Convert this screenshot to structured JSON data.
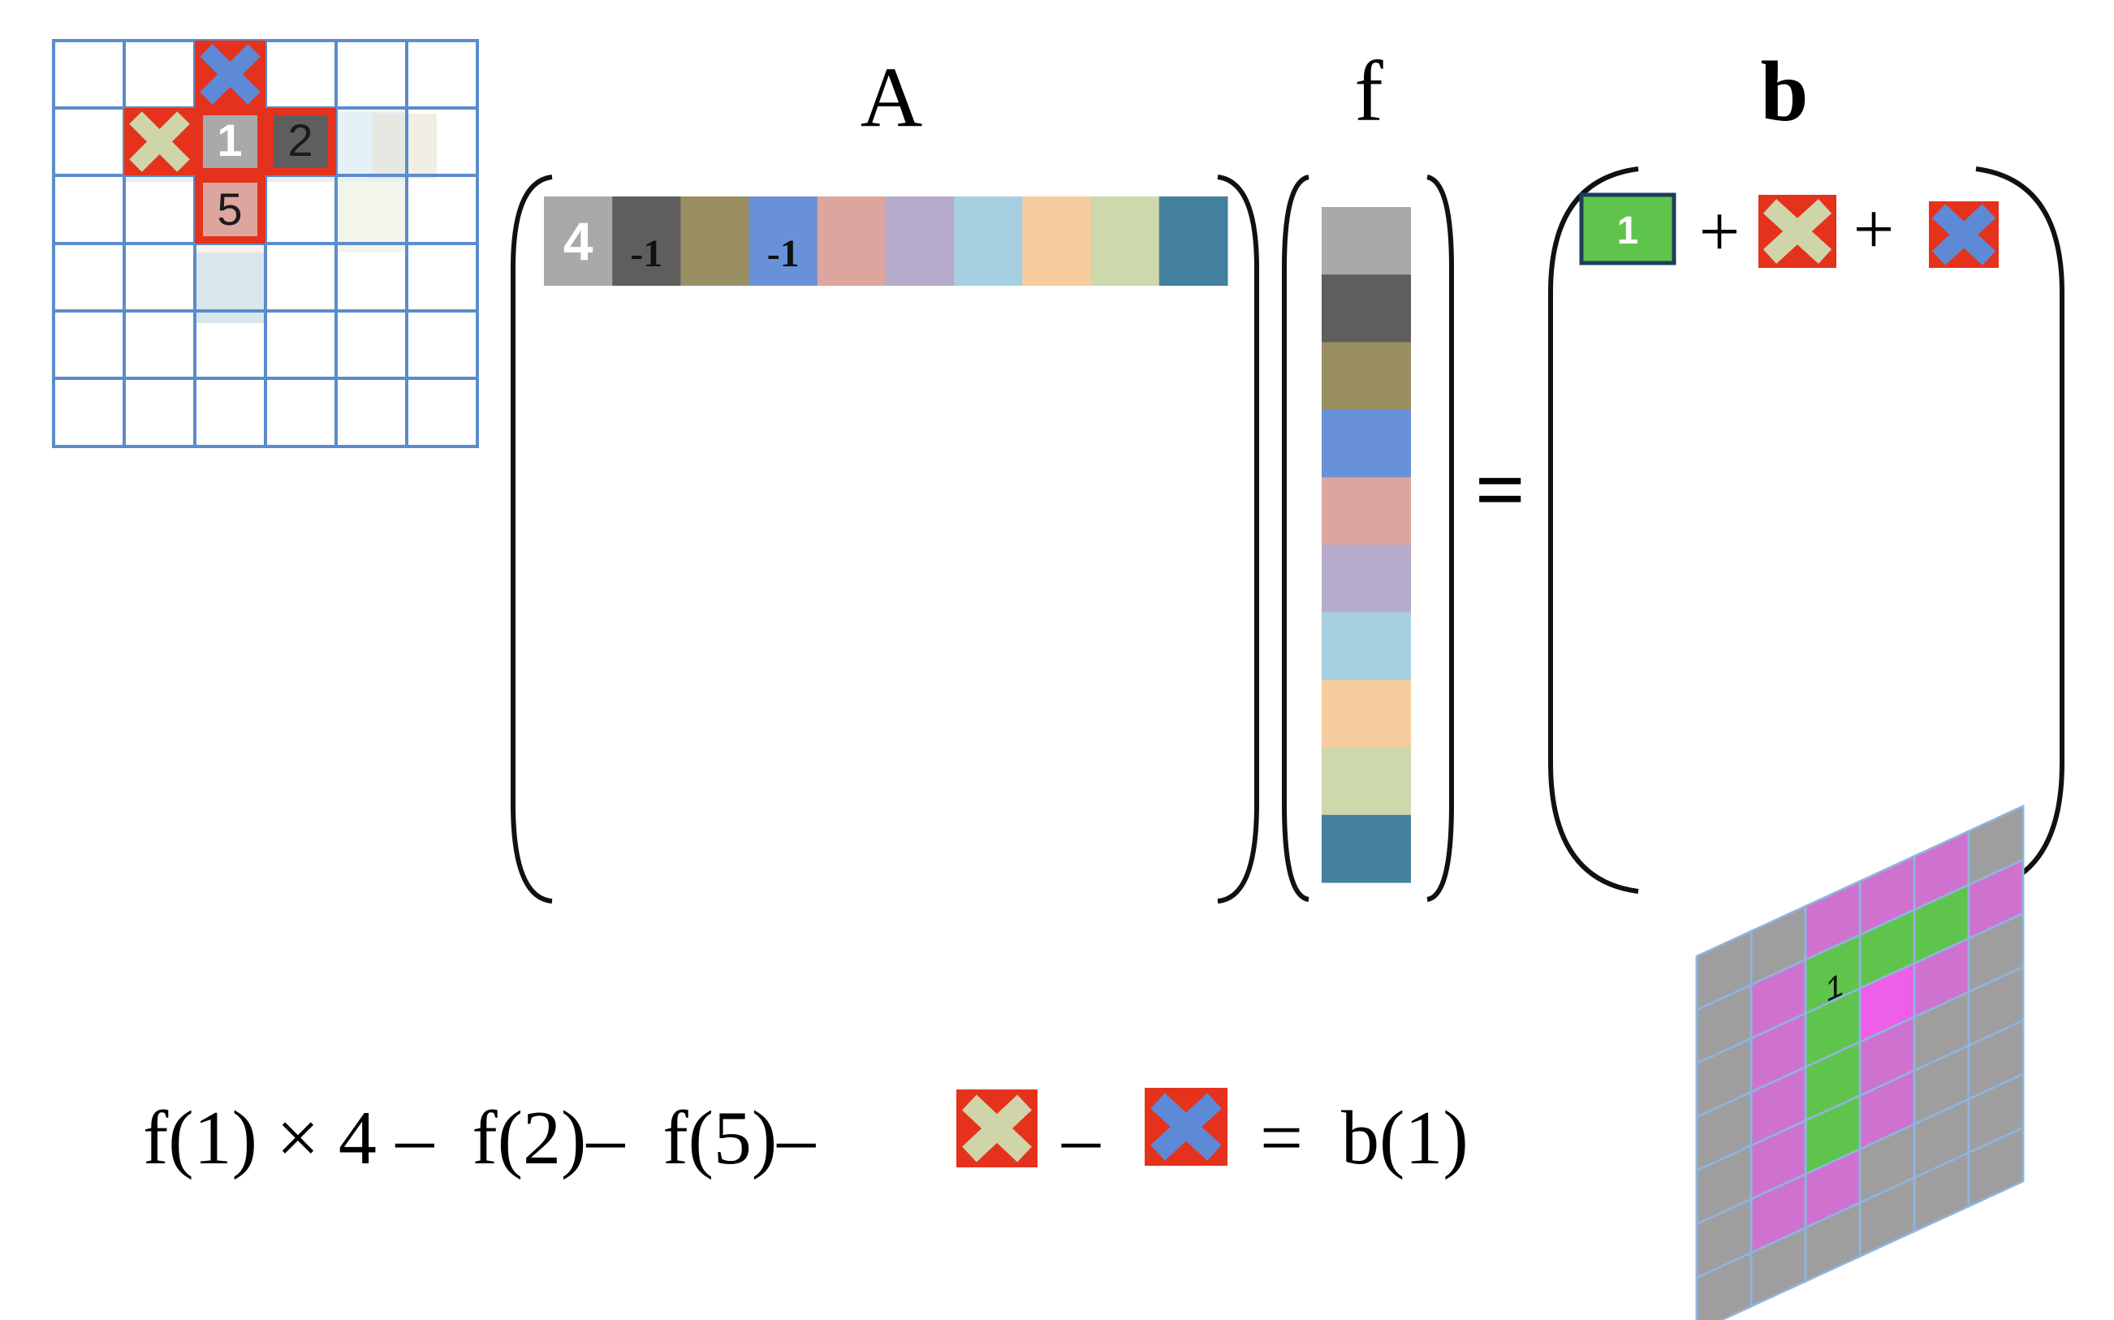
{
  "colors": {
    "grid_line": "#5b8ccc",
    "highlight_border": "#e5321c",
    "x_fill_boundary": "#cfd4a9",
    "x_fill_top": "#5e89d6",
    "green_known": "#5fc44c",
    "magenta": "#cf71cf",
    "gray_cell": "#9e9e9e",
    "f_palette": [
      "#a9a9a9",
      "#5e5e5e",
      "#9a8e63",
      "#6891d8",
      "#dca69e",
      "#b6abcb",
      "#a6cfe1",
      "#f7cda0",
      "#cdd8ab",
      "#43819f"
    ]
  },
  "grid": {
    "cell_labels": {
      "c1": "1",
      "c2": "2",
      "c5": "5"
    }
  },
  "matrix_A": {
    "label": "A",
    "row_values": [
      "4",
      "-1",
      "",
      "-1",
      "",
      "",
      "",
      "",
      "",
      ""
    ]
  },
  "vector_f": {
    "label": "f"
  },
  "equals_sign": "=",
  "vector_b": {
    "label": "b",
    "known_value": "1",
    "plus_1": "+",
    "plus_2": "+"
  },
  "equation": {
    "part1": "f(1) × 4 –  f(2)–  f(5)–",
    "minus": "–",
    "result": "=  b(1)"
  },
  "target_patch": {
    "cell_label": "1"
  }
}
